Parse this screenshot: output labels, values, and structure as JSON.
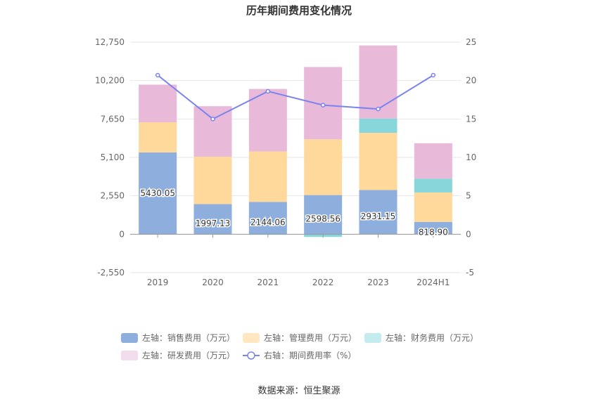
{
  "chart_data": {
    "type": "bar",
    "title": "历年期间费用变化情况",
    "categories": [
      "2019",
      "2020",
      "2021",
      "2022",
      "2023",
      "2024H1"
    ],
    "stacked": true,
    "left_axis": {
      "ticks": [
        "12,750",
        "10,200",
        "7,650",
        "5,100",
        "2,550",
        "0",
        "-2,550"
      ],
      "ylim": [
        -2550,
        12750
      ]
    },
    "right_axis": {
      "ticks": [
        "25",
        "20",
        "15",
        "10",
        "5",
        "0",
        "-5"
      ],
      "ylim": [
        -5,
        25
      ]
    },
    "series": [
      {
        "name": "左轴：销售费用（万元）",
        "axis": "left",
        "color": "#8eaedd",
        "values": [
          5430.05,
          1997.13,
          2144.06,
          2598.56,
          2931.15,
          818.9
        ],
        "labels": [
          "5430.05",
          "1997.13",
          "2144.06",
          "2598.56",
          "2931.15",
          "818.90"
        ]
      },
      {
        "name": "左轴：管理费用（万元）",
        "axis": "left",
        "color": "#ffd99b",
        "values": [
          2000,
          3150,
          3350,
          3700,
          3800,
          1950
        ]
      },
      {
        "name": "左轴：财务费用（万元）",
        "axis": "left",
        "color": "#87d7da",
        "values": [
          -30,
          -20,
          -40,
          -180,
          950,
          920
        ]
      },
      {
        "name": "左轴：研发费用（万元）",
        "axis": "left",
        "color": "#e8b9d9",
        "values": [
          2500,
          3350,
          4150,
          4800,
          4850,
          2350
        ]
      },
      {
        "name": "右轴：期间费用率（%）",
        "axis": "right",
        "type": "line",
        "color": "#7b83ee",
        "values": [
          20.7,
          15.0,
          18.6,
          16.8,
          16.3,
          20.7
        ]
      }
    ],
    "legend_position": "bottom",
    "grid": true
  },
  "source_text": "数据来源：恒生聚源"
}
